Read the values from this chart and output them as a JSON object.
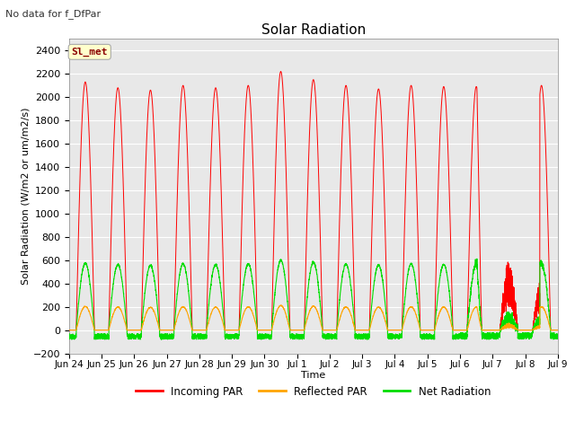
{
  "title": "Solar Radiation",
  "subtitle": "No data for f_DfPar",
  "xlabel": "Time",
  "ylabel": "Solar Radiation (W/m2 or um/m2/s)",
  "ylim": [
    -200,
    2500
  ],
  "yticks": [
    -200,
    0,
    200,
    400,
    600,
    800,
    1000,
    1200,
    1400,
    1600,
    1800,
    2000,
    2200,
    2400
  ],
  "legend_label": "Sl_met",
  "x_tick_labels": [
    "Jun 24",
    "Jun 25",
    "Jun 26",
    "Jun 27",
    "Jun 28",
    "Jun 29",
    "Jun 30",
    "Jul 1",
    "Jul 2",
    "Jul 3",
    "Jul 4",
    "Jul 5",
    "Jul 6",
    "Jul 7",
    "Jul 8",
    "Jul 9"
  ],
  "line_colors": {
    "incoming": "#FF0000",
    "reflected": "#FFA500",
    "net": "#00DD00"
  },
  "legend_entries": [
    "Incoming PAR",
    "Reflected PAR",
    "Net Radiation"
  ],
  "background_color": "#FFFFFF",
  "plot_bg_color": "#E8E8E8",
  "grid_color": "#FFFFFF",
  "num_days": 15,
  "title_fontsize": 11,
  "axis_fontsize": 8,
  "tick_fontsize": 8
}
